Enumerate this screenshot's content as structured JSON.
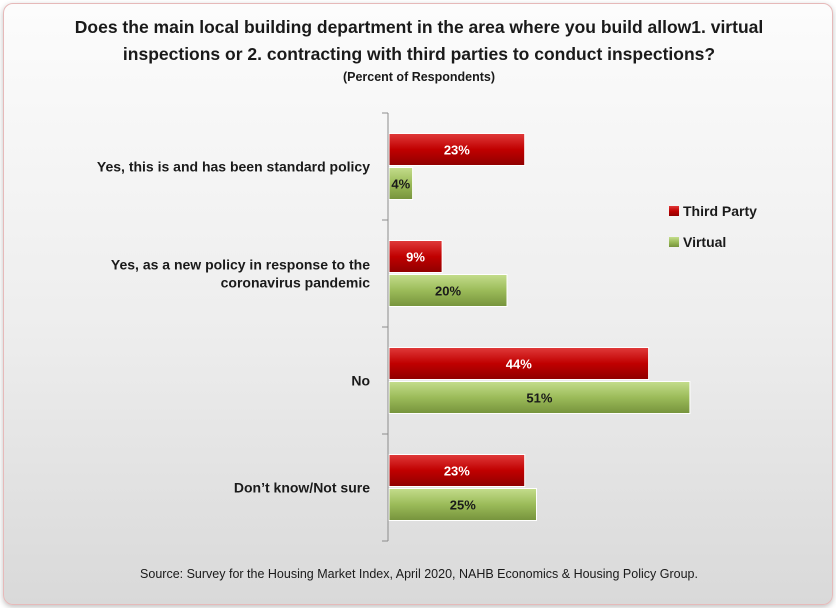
{
  "chart_data": {
    "type": "bar",
    "orientation": "horizontal",
    "title": "Does the main local building department in the area where you build allow1. virtual inspections or 2. contracting with third parties to conduct inspections?",
    "subtitle": "(Percent of Respondents)",
    "source": "Source: Survey for the Housing Market Index, April 2020, NAHB Economics & Housing Policy Group.",
    "categories": [
      [
        "Yes, this is and has been standard policy"
      ],
      [
        "Yes, as a new policy in response to the",
        "coronavirus pandemic"
      ],
      [
        "No"
      ],
      [
        "Don’t know/Not sure"
      ]
    ],
    "series": [
      {
        "name": "Third Party",
        "values": [
          23,
          9,
          44,
          23
        ],
        "labels": [
          "23%",
          "9%",
          "44%",
          "23%"
        ],
        "color": "#c00000"
      },
      {
        "name": "Virtual",
        "values": [
          4,
          20,
          51,
          25
        ],
        "labels": [
          "4%",
          "20%",
          "51%",
          "25%"
        ],
        "color": "#9bbb59"
      }
    ],
    "xlim": [
      0,
      100
    ],
    "grid": false,
    "legend": "right"
  }
}
